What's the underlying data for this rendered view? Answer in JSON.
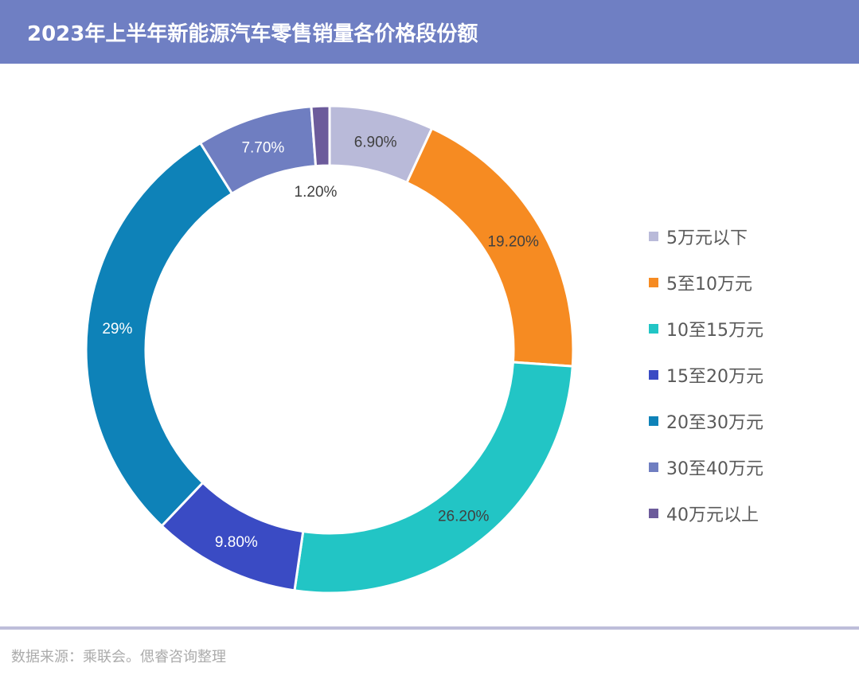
{
  "title": "2023年上半年新能源汽车零售销量各价格段份额",
  "source": "数据来源：乘联会。偲睿咨询整理",
  "chart_data": {
    "type": "pie",
    "variant": "donut",
    "title": "2023年上半年新能源汽车零售销量各价格段份额",
    "categories": [
      "5万元以下",
      "5至10万元",
      "10至15万元",
      "15至20万元",
      "20至30万元",
      "30至40万元",
      "40万元以上"
    ],
    "values": [
      6.9,
      19.2,
      26.2,
      9.8,
      29,
      7.7,
      1.2
    ],
    "labels": [
      "6.90%",
      "19.20%",
      "26.20%",
      "9.80%",
      "29%",
      "7.70%",
      "1.20%"
    ],
    "colors": [
      "#B9BAD9",
      "#F68B22",
      "#22C5C5",
      "#3A4BC4",
      "#0E82B8",
      "#6F7EC1",
      "#6C5B9B"
    ],
    "label_colors": [
      "#404040",
      "#404040",
      "#404040",
      "#ffffff",
      "#ffffff",
      "#ffffff",
      "#404040"
    ],
    "legend_position": "right"
  }
}
